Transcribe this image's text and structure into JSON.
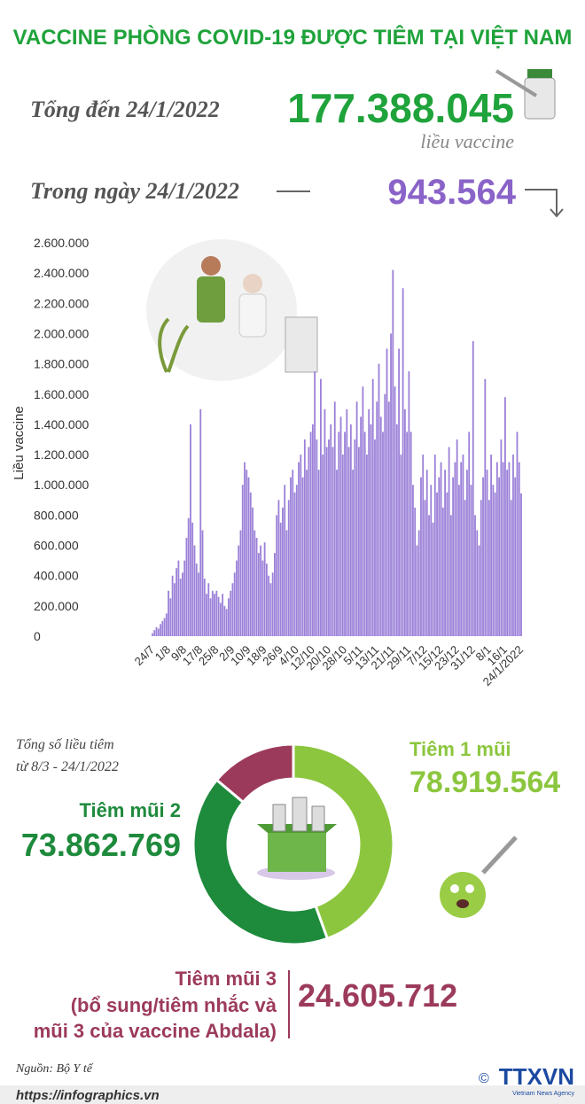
{
  "header": {
    "title": "VACCINE PHÒNG COVID-19 ĐƯỢC TIÊM TẠI VIỆT NAM",
    "total_label": "Tổng đến 24/1/2022",
    "total": "177.388.045",
    "unit": "liều vaccine",
    "daily_label": "Trong ngày 24/1/2022",
    "daily": "943.564"
  },
  "chart_data": [
    {
      "type": "bar",
      "y_label": "Liều vaccine",
      "color": "#9b80d8",
      "ylim": [
        0,
        2600000
      ],
      "yticks": [
        0,
        {
          "value": 200000,
          "label": "200.000"
        },
        {
          "value": 400000,
          "label": "400.000"
        },
        {
          "value": 600000,
          "label": "600.000"
        },
        {
          "value": 800000,
          "label": "800.000"
        },
        {
          "value": 1000000,
          "label": "1.000.000"
        },
        {
          "value": 1200000,
          "label": "1.200.000"
        },
        {
          "value": 1400000,
          "label": "1.400.000"
        },
        {
          "value": 1600000,
          "label": "1.600.000"
        },
        {
          "value": 1800000,
          "label": "1.800.000"
        },
        {
          "value": 2000000,
          "label": "2.000.000"
        },
        {
          "value": 2200000,
          "label": "2.200.000"
        },
        {
          "value": 2400000,
          "label": "2.400.000"
        },
        {
          "value": 2600000,
          "label": "2.600.000"
        }
      ],
      "categories": [
        "24/7",
        null,
        null,
        null,
        null,
        null,
        null,
        null,
        "1/8",
        null,
        null,
        null,
        null,
        null,
        null,
        null,
        "9/8",
        null,
        null,
        null,
        null,
        null,
        null,
        null,
        "17/8",
        null,
        null,
        null,
        null,
        null,
        null,
        null,
        "25/8",
        null,
        null,
        null,
        null,
        null,
        null,
        null,
        "2/9",
        null,
        null,
        null,
        null,
        null,
        null,
        null,
        "10/9",
        null,
        null,
        null,
        null,
        null,
        null,
        null,
        "18/9",
        null,
        null,
        null,
        null,
        null,
        null,
        null,
        "26/9",
        null,
        null,
        null,
        null,
        null,
        null,
        null,
        "4/10",
        null,
        null,
        null,
        null,
        null,
        null,
        null,
        "12/10",
        null,
        null,
        null,
        null,
        null,
        null,
        null,
        "20/10",
        null,
        null,
        null,
        null,
        null,
        null,
        null,
        "28/10",
        null,
        null,
        null,
        null,
        null,
        null,
        null,
        "5/11",
        null,
        null,
        null,
        null,
        null,
        null,
        null,
        "13/11",
        null,
        null,
        null,
        null,
        null,
        null,
        null,
        "21/11",
        null,
        null,
        null,
        null,
        null,
        null,
        null,
        "29/11",
        null,
        null,
        null,
        null,
        null,
        null,
        null,
        "7/12",
        null,
        null,
        null,
        null,
        null,
        null,
        null,
        "15/12",
        null,
        null,
        null,
        null,
        null,
        null,
        null,
        "23/12",
        null,
        null,
        null,
        null,
        null,
        null,
        null,
        "31/12",
        null,
        null,
        null,
        null,
        null,
        null,
        null,
        "8/1",
        null,
        null,
        null,
        null,
        null,
        null,
        null,
        "16/1",
        null,
        null,
        null,
        null,
        null,
        null,
        null,
        "24/1/2022"
      ],
      "values": [
        20000,
        40000,
        60000,
        50000,
        80000,
        100000,
        120000,
        150000,
        300000,
        250000,
        400000,
        350000,
        450000,
        500000,
        380000,
        420000,
        500000,
        650000,
        780000,
        1400000,
        750000,
        600000,
        480000,
        420000,
        1500000,
        700000,
        380000,
        280000,
        350000,
        250000,
        300000,
        280000,
        300000,
        260000,
        220000,
        280000,
        200000,
        180000,
        250000,
        300000,
        350000,
        420000,
        500000,
        600000,
        700000,
        1000000,
        1150000,
        1100000,
        1050000,
        950000,
        850000,
        700000,
        650000,
        550000,
        600000,
        500000,
        620000,
        480000,
        400000,
        350000,
        420000,
        550000,
        800000,
        900000,
        750000,
        850000,
        1000000,
        700000,
        900000,
        1050000,
        1100000,
        950000,
        1000000,
        1150000,
        1200000,
        1050000,
        1300000,
        1100000,
        1250000,
        1350000,
        1400000,
        1750000,
        1300000,
        1100000,
        1700000,
        1200000,
        1500000,
        1250000,
        1300000,
        1400000,
        1250000,
        1550000,
        1100000,
        1350000,
        1450000,
        1200000,
        1350000,
        1500000,
        1250000,
        1400000,
        1100000,
        1300000,
        1550000,
        1250000,
        1450000,
        1650000,
        1350000,
        1200000,
        1500000,
        1400000,
        1700000,
        1300000,
        1550000,
        1800000,
        1450000,
        1350000,
        1600000,
        1900000,
        1550000,
        2000000,
        2420000,
        1650000,
        1400000,
        1900000,
        1200000,
        2300000,
        1500000,
        1350000,
        1750000,
        1350000,
        1000000,
        850000,
        600000,
        700000,
        1050000,
        1200000,
        900000,
        1100000,
        800000,
        1000000,
        750000,
        1200000,
        950000,
        1050000,
        1150000,
        850000,
        1100000,
        950000,
        1250000,
        800000,
        1050000,
        1150000,
        1300000,
        1000000,
        1150000,
        1200000,
        900000,
        1100000,
        1350000,
        1000000,
        1950000,
        800000,
        700000,
        600000,
        900000,
        1050000,
        1700000,
        1100000,
        900000,
        1200000,
        1000000,
        950000,
        1150000,
        1050000,
        1300000,
        1150000,
        1580000,
        1100000,
        1150000,
        900000,
        1200000,
        1050000,
        1350000,
        1150000,
        943564
      ]
    },
    {
      "type": "pie",
      "subtitle": [
        "Tổng số liều tiêm",
        "từ 8/3 - 24/1/2022"
      ],
      "categories": [
        "Tiêm 1 mũi",
        "Tiêm mũi 2",
        "Tiêm mũi 3"
      ],
      "values": [
        78919564,
        73862769,
        24605712
      ],
      "value_labels": [
        "78.919.564",
        "73.862.769",
        "24.605.712"
      ],
      "colors": [
        "#8cc63e",
        "#1e8a3c",
        "#9c3a5c"
      ],
      "annotation": [
        "(bổ sung/tiêm nhắc và",
        "mũi 3 của vaccine Abdala)"
      ]
    }
  ],
  "footer": {
    "source": "Nguồn: Bộ Y tế",
    "url": "https://infographics.vn",
    "logo": "TTXVN",
    "logo_sub": "Vietnam News Agency"
  }
}
